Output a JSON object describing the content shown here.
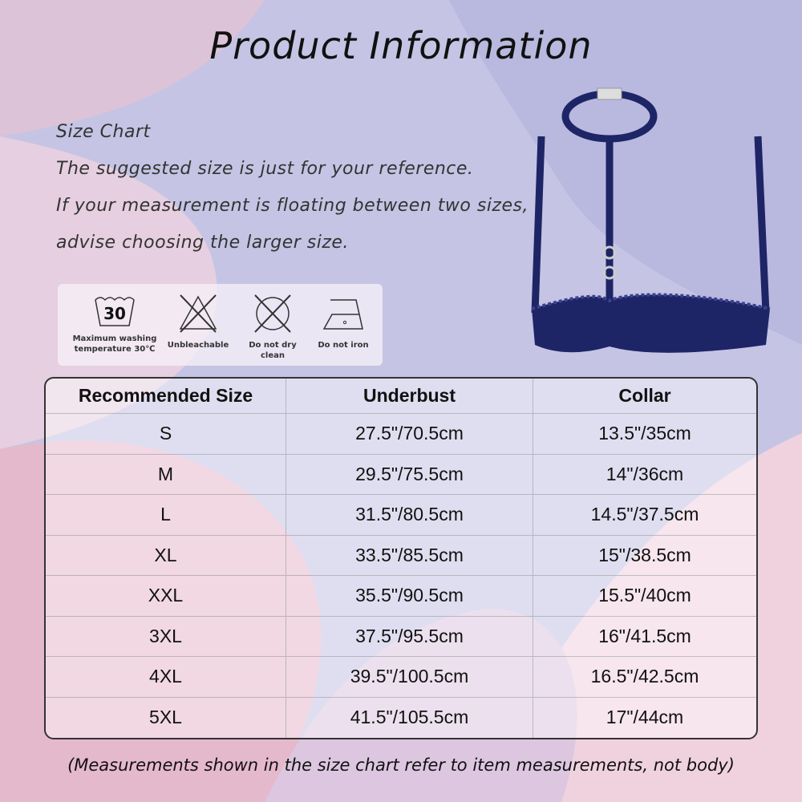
{
  "title": "Product Information",
  "intro": {
    "heading": "Size Chart",
    "line1": "The suggested size is just for your reference.",
    "line2": "If your measurement is floating between two sizes,",
    "line3": "advise choosing the larger size."
  },
  "care": [
    {
      "icon": "wash-30-icon",
      "number": "30",
      "label1": "Maximum washing",
      "label2": "temperature 30℃"
    },
    {
      "icon": "no-bleach-icon",
      "label1": "Unbleachable"
    },
    {
      "icon": "no-dry-clean-icon",
      "label1": "Do not dry clean"
    },
    {
      "icon": "no-iron-icon",
      "label1": "Do not iron"
    }
  ],
  "table": {
    "headers": [
      "Recommended Size",
      "Underbust",
      "Collar"
    ],
    "rows": [
      [
        "S",
        "27.5\"/70.5cm",
        "13.5\"/35cm"
      ],
      [
        "M",
        "29.5\"/75.5cm",
        "14\"/36cm"
      ],
      [
        "L",
        "31.5\"/80.5cm",
        "14.5\"/37.5cm"
      ],
      [
        "XL",
        "33.5\"/85.5cm",
        "15\"/38.5cm"
      ],
      [
        "XXL",
        "35.5\"/90.5cm",
        "15.5\"/40cm"
      ],
      [
        "3XL",
        "37.5\"/95.5cm",
        "16\"/41.5cm"
      ],
      [
        "4XL",
        "39.5\"/100.5cm",
        "16.5\"/42.5cm"
      ],
      [
        "5XL",
        "41.5\"/105.5cm",
        "17\"/44cm"
      ]
    ]
  },
  "note": "(Measurements shown in the size chart refer to item measurements, not body)",
  "colors": {
    "product": "#1e2566",
    "bg_lavender": "#c4c3e4",
    "bg_pink": "#e9c9d6"
  }
}
